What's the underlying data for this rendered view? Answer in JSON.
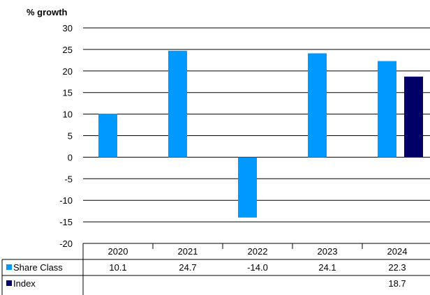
{
  "chart_data": {
    "type": "bar",
    "title": "",
    "ylabel": "% growth",
    "xlabel": "",
    "ylim": [
      -20,
      30
    ],
    "yticks": [
      30,
      25,
      20,
      15,
      10,
      5,
      0,
      -5,
      -10,
      -15,
      -20
    ],
    "grid": true,
    "legend": "table-rows",
    "categories": [
      "2020",
      "2021",
      "2022",
      "2023",
      "2024"
    ],
    "series": [
      {
        "name": "Share Class",
        "color": "#0099ff",
        "values": [
          10.1,
          24.7,
          -14.0,
          24.1,
          22.3
        ],
        "labels": [
          "10.1",
          "24.7",
          "-14.0",
          "24.1",
          "22.3"
        ]
      },
      {
        "name": "Index",
        "color": "#000066",
        "values": [
          null,
          null,
          null,
          null,
          18.7
        ],
        "labels": [
          "",
          "",
          "",
          "",
          "18.7"
        ]
      }
    ]
  }
}
